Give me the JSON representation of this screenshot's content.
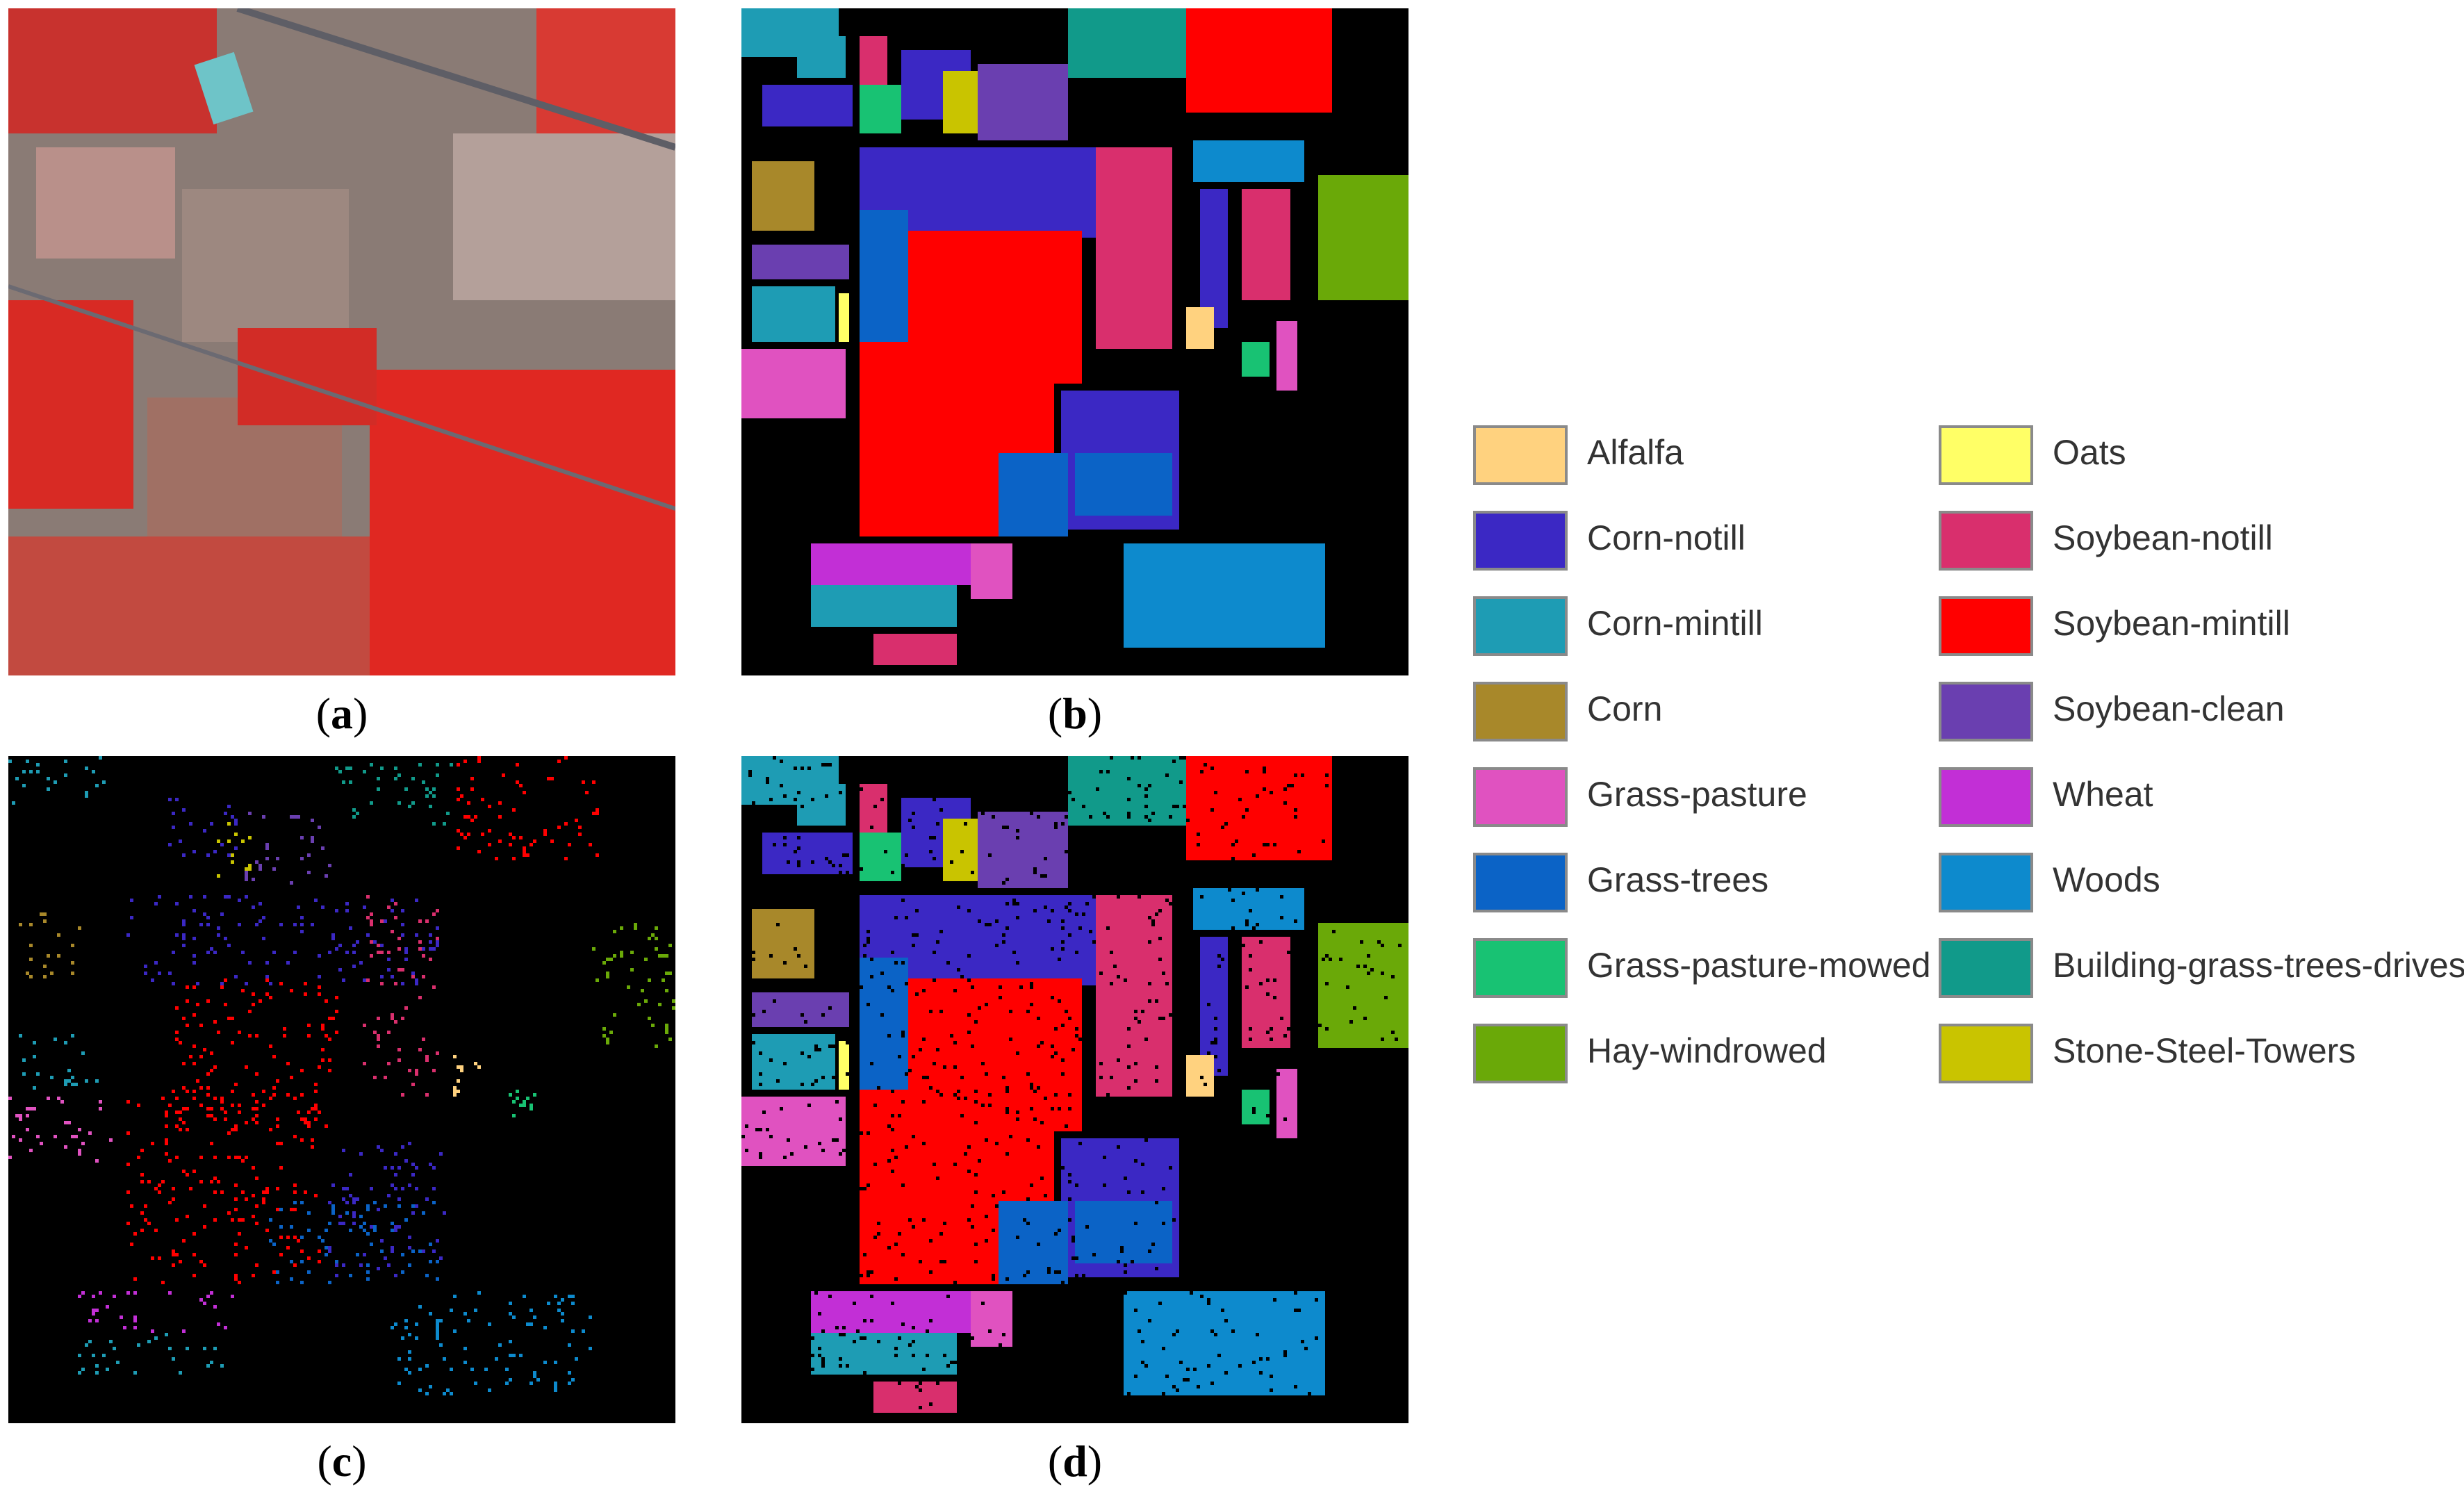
{
  "captions": {
    "a": {
      "open": "(",
      "letter": "a",
      "close": ")"
    },
    "b": {
      "open": "(",
      "letter": "b",
      "close": ")"
    },
    "c": {
      "open": "(",
      "letter": "c",
      "close": ")"
    },
    "d": {
      "open": "(",
      "letter": "d",
      "close": ")"
    }
  },
  "legend": [
    {
      "label": "Alfalfa",
      "color": "#ffd27f"
    },
    {
      "label": "Corn-notill",
      "color": "#3b28c4"
    },
    {
      "label": "Corn-mintill",
      "color": "#1e9cb4"
    },
    {
      "label": "Corn",
      "color": "#a8882a"
    },
    {
      "label": "Grass-pasture",
      "color": "#e052c0"
    },
    {
      "label": "Grass-trees",
      "color": "#0b63c6"
    },
    {
      "label": "Grass-pasture-mowed",
      "color": "#18c273"
    },
    {
      "label": "Hay-windrowed",
      "color": "#6aa908"
    },
    {
      "label": "Oats",
      "color": "#ffff66"
    },
    {
      "label": "Soybean-notill",
      "color": "#d92f6d"
    },
    {
      "label": "Soybean-mintill",
      "color": "#ff0000"
    },
    {
      "label": "Soybean-clean",
      "color": "#6a3fb0"
    },
    {
      "label": "Wheat",
      "color": "#c22fd6"
    },
    {
      "label": "Woods",
      "color": "#0d8acd"
    },
    {
      "label": "Building-grass-trees-drives",
      "color": "#119a8a"
    },
    {
      "label": "Stone-Steel-Towers",
      "color": "#c9c400"
    }
  ]
}
